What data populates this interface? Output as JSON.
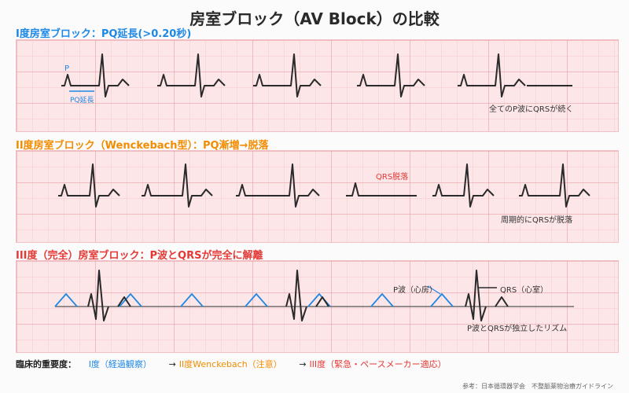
{
  "title": "房室ブロック（AV Block）の比較",
  "colors": {
    "first": "#1e88e5",
    "second": "#f28c00",
    "third": "#e53935"
  },
  "sections": {
    "first": {
      "title": "I度房室ブロック：PQ延長(>0.20秒)",
      "p_label": "P",
      "pq_label": "PQ延長",
      "note": "全てのP波にQRSが続く"
    },
    "second": {
      "title": "II度房室ブロック（Wenckebach型）：PQ漸増→脱落",
      "dropped_label": "QRS脱落",
      "note": "周期的にQRSが脱落"
    },
    "third": {
      "title": "III度（完全）房室ブロック：P波とQRSが完全に解離",
      "p_label": "P波（心房）",
      "qrs_label": "QRS（心室）",
      "note": "P波とQRSが独立したリズム"
    }
  },
  "legend": {
    "label": "臨床的重要度：",
    "first": "I度（経過観察）",
    "arrow1": "→",
    "second": "II度Wenckebach（注意）",
    "arrow2": "→",
    "third": "III度（緊急・ペースメーカー適応）"
  },
  "footer": "参考：日本循環器学会　不整脈薬物治療ガイドライン"
}
